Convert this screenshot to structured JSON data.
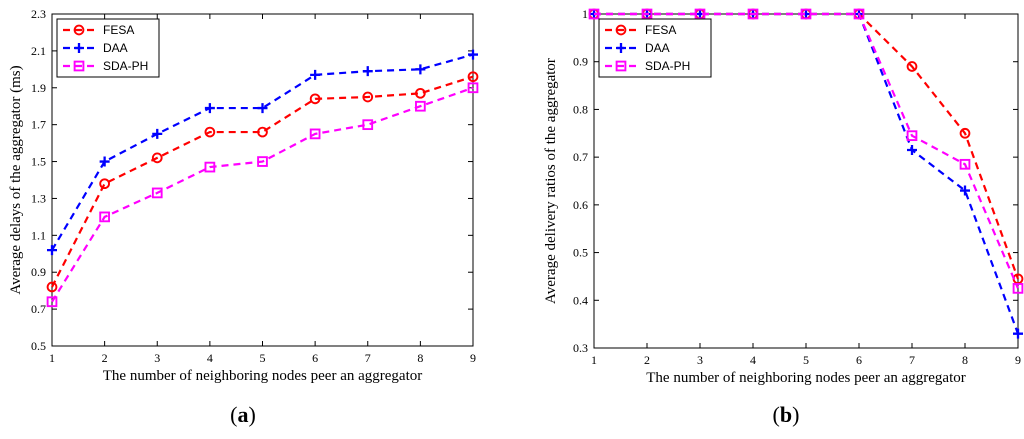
{
  "chart_data": [
    {
      "type": "line",
      "panel_label": "a",
      "xlabel": "The number of neighboring nodes peer an aggregator",
      "ylabel": "Average delays of the aggregator (ms)",
      "x": [
        1,
        2,
        3,
        4,
        5,
        6,
        7,
        8,
        9
      ],
      "xlim": [
        1,
        9
      ],
      "ylim": [
        0.5,
        2.3
      ],
      "xticks": [
        "1",
        "2",
        "3",
        "4",
        "5",
        "6",
        "7",
        "8",
        "9"
      ],
      "yticks": [
        "0.5",
        "0.7",
        "0.9",
        "1.1",
        "1.3",
        "1.5",
        "1.7",
        "1.9",
        "2.1",
        "2.3"
      ],
      "legend_position": "top-left",
      "grid": false,
      "series": [
        {
          "name": "FESA",
          "color": "#ff0000",
          "marker": "circle",
          "values": [
            0.82,
            1.38,
            1.52,
            1.66,
            1.66,
            1.84,
            1.85,
            1.87,
            1.96
          ]
        },
        {
          "name": "DAA",
          "color": "#0000ff",
          "marker": "plus",
          "values": [
            1.02,
            1.5,
            1.65,
            1.79,
            1.79,
            1.97,
            1.99,
            2.0,
            2.08
          ]
        },
        {
          "name": "SDA-PH",
          "color": "#ff00ff",
          "marker": "square",
          "values": [
            0.74,
            1.2,
            1.33,
            1.47,
            1.5,
            1.65,
            1.7,
            1.8,
            1.9
          ]
        }
      ]
    },
    {
      "type": "line",
      "panel_label": "b",
      "xlabel": "The number of neighboring nodes peer an aggregator",
      "ylabel": "Average delivery ratios of the aggregator",
      "x": [
        1,
        2,
        3,
        4,
        5,
        6,
        7,
        8,
        9
      ],
      "xlim": [
        1,
        9
      ],
      "ylim": [
        0.3,
        1.0
      ],
      "xticks": [
        "1",
        "2",
        "3",
        "4",
        "5",
        "6",
        "7",
        "8",
        "9"
      ],
      "yticks": [
        "0.3",
        "0.4",
        "0.5",
        "0.6",
        "0.7",
        "0.8",
        "0.9",
        "1"
      ],
      "legend_position": "top-left",
      "grid": false,
      "series": [
        {
          "name": "FESA",
          "color": "#ff0000",
          "marker": "circle",
          "values": [
            1.0,
            1.0,
            1.0,
            1.0,
            1.0,
            1.0,
            0.89,
            0.75,
            0.445
          ]
        },
        {
          "name": "DAA",
          "color": "#0000ff",
          "marker": "plus",
          "values": [
            1.0,
            1.0,
            1.0,
            1.0,
            1.0,
            1.0,
            0.715,
            0.63,
            0.33
          ]
        },
        {
          "name": "SDA-PH",
          "color": "#ff00ff",
          "marker": "square",
          "values": [
            1.0,
            1.0,
            1.0,
            1.0,
            1.0,
            1.0,
            0.745,
            0.685,
            0.425
          ]
        }
      ]
    }
  ]
}
